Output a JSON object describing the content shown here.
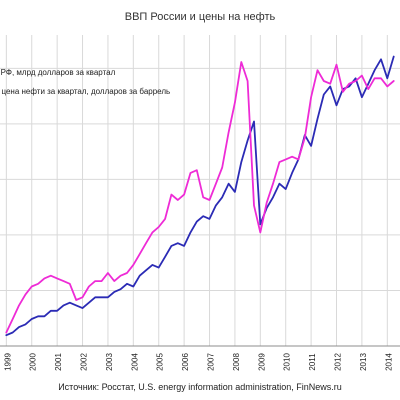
{
  "chart_data": {
    "type": "line",
    "title": "ВВП России и цены на нефть",
    "source": "Источник: Росстат, U.S. energy information administration, FinNews.ru",
    "x_tick_labels": [
      "1999",
      "2000",
      "2001",
      "2002",
      "2003",
      "2004",
      "2005",
      "2006",
      "2007",
      "2008",
      "2009",
      "2010",
      "2011",
      "2012",
      "2013",
      "2014"
    ],
    "legend_placement": "top-left",
    "grid": true,
    "series": [
      {
        "name": "ВВП РФ, млрд долларов за квартал",
        "color": "#2b2bb5",
        "values": [
          [
            1999.0,
            0.04
          ],
          [
            1999.25,
            0.05
          ],
          [
            1999.5,
            0.07
          ],
          [
            1999.75,
            0.08
          ],
          [
            2000.0,
            0.1
          ],
          [
            2000.25,
            0.11
          ],
          [
            2000.5,
            0.11
          ],
          [
            2000.75,
            0.13
          ],
          [
            2001.0,
            0.13
          ],
          [
            2001.25,
            0.15
          ],
          [
            2001.5,
            0.16
          ],
          [
            2001.75,
            0.15
          ],
          [
            2002.0,
            0.14
          ],
          [
            2002.25,
            0.16
          ],
          [
            2002.5,
            0.18
          ],
          [
            2002.75,
            0.18
          ],
          [
            2003.0,
            0.18
          ],
          [
            2003.25,
            0.2
          ],
          [
            2003.5,
            0.21
          ],
          [
            2003.75,
            0.23
          ],
          [
            2004.0,
            0.22
          ],
          [
            2004.25,
            0.26
          ],
          [
            2004.5,
            0.28
          ],
          [
            2004.75,
            0.3
          ],
          [
            2005.0,
            0.29
          ],
          [
            2005.25,
            0.33
          ],
          [
            2005.5,
            0.37
          ],
          [
            2005.75,
            0.38
          ],
          [
            2006.0,
            0.37
          ],
          [
            2006.25,
            0.42
          ],
          [
            2006.5,
            0.46
          ],
          [
            2006.75,
            0.48
          ],
          [
            2007.0,
            0.47
          ],
          [
            2007.25,
            0.52
          ],
          [
            2007.5,
            0.55
          ],
          [
            2007.75,
            0.6
          ],
          [
            2008.0,
            0.57
          ],
          [
            2008.25,
            0.68
          ],
          [
            2008.5,
            0.76
          ],
          [
            2008.75,
            0.83
          ],
          [
            2009.0,
            0.45
          ],
          [
            2009.25,
            0.51
          ],
          [
            2009.5,
            0.55
          ],
          [
            2009.75,
            0.6
          ],
          [
            2010.0,
            0.58
          ],
          [
            2010.25,
            0.64
          ],
          [
            2010.5,
            0.69
          ],
          [
            2010.75,
            0.78
          ],
          [
            2011.0,
            0.74
          ],
          [
            2011.25,
            0.84
          ],
          [
            2011.5,
            0.93
          ],
          [
            2011.75,
            0.96
          ],
          [
            2012.0,
            0.89
          ],
          [
            2012.25,
            0.95
          ],
          [
            2012.5,
            0.96
          ],
          [
            2012.75,
            0.99
          ],
          [
            2013.0,
            0.92
          ],
          [
            2013.25,
            0.97
          ],
          [
            2013.5,
            1.02
          ],
          [
            2013.75,
            1.06
          ],
          [
            2014.0,
            0.99
          ],
          [
            2014.25,
            1.07
          ]
        ]
      },
      {
        "name": "Средняя цена нефти за квартал, долларов за баррель",
        "color": "#ee2bd6",
        "values": [
          [
            1999.0,
            0.05
          ],
          [
            1999.25,
            0.1
          ],
          [
            1999.5,
            0.15
          ],
          [
            1999.75,
            0.19
          ],
          [
            2000.0,
            0.22
          ],
          [
            2000.25,
            0.23
          ],
          [
            2000.5,
            0.25
          ],
          [
            2000.75,
            0.26
          ],
          [
            2001.0,
            0.25
          ],
          [
            2001.25,
            0.24
          ],
          [
            2001.5,
            0.23
          ],
          [
            2001.75,
            0.17
          ],
          [
            2002.0,
            0.18
          ],
          [
            2002.25,
            0.22
          ],
          [
            2002.5,
            0.24
          ],
          [
            2002.75,
            0.24
          ],
          [
            2003.0,
            0.27
          ],
          [
            2003.25,
            0.24
          ],
          [
            2003.5,
            0.26
          ],
          [
            2003.75,
            0.27
          ],
          [
            2004.0,
            0.3
          ],
          [
            2004.25,
            0.34
          ],
          [
            2004.5,
            0.38
          ],
          [
            2004.75,
            0.42
          ],
          [
            2005.0,
            0.44
          ],
          [
            2005.25,
            0.47
          ],
          [
            2005.5,
            0.56
          ],
          [
            2005.75,
            0.54
          ],
          [
            2006.0,
            0.56
          ],
          [
            2006.25,
            0.64
          ],
          [
            2006.5,
            0.65
          ],
          [
            2006.75,
            0.55
          ],
          [
            2007.0,
            0.54
          ],
          [
            2007.25,
            0.6
          ],
          [
            2007.5,
            0.66
          ],
          [
            2007.75,
            0.79
          ],
          [
            2008.0,
            0.9
          ],
          [
            2008.25,
            1.05
          ],
          [
            2008.5,
            0.98
          ],
          [
            2008.75,
            0.52
          ],
          [
            2009.0,
            0.42
          ],
          [
            2009.25,
            0.53
          ],
          [
            2009.5,
            0.6
          ],
          [
            2009.75,
            0.68
          ],
          [
            2010.0,
            0.69
          ],
          [
            2010.25,
            0.7
          ],
          [
            2010.5,
            0.69
          ],
          [
            2010.75,
            0.77
          ],
          [
            2011.0,
            0.92
          ],
          [
            2011.25,
            1.02
          ],
          [
            2011.5,
            0.98
          ],
          [
            2011.75,
            0.97
          ],
          [
            2012.0,
            1.04
          ],
          [
            2012.25,
            0.94
          ],
          [
            2012.5,
            0.97
          ],
          [
            2012.75,
            0.98
          ],
          [
            2013.0,
            1.0
          ],
          [
            2013.25,
            0.95
          ],
          [
            2013.5,
            0.99
          ],
          [
            2013.75,
            0.99
          ],
          [
            2014.0,
            0.96
          ],
          [
            2014.25,
            0.98
          ]
        ]
      }
    ]
  }
}
